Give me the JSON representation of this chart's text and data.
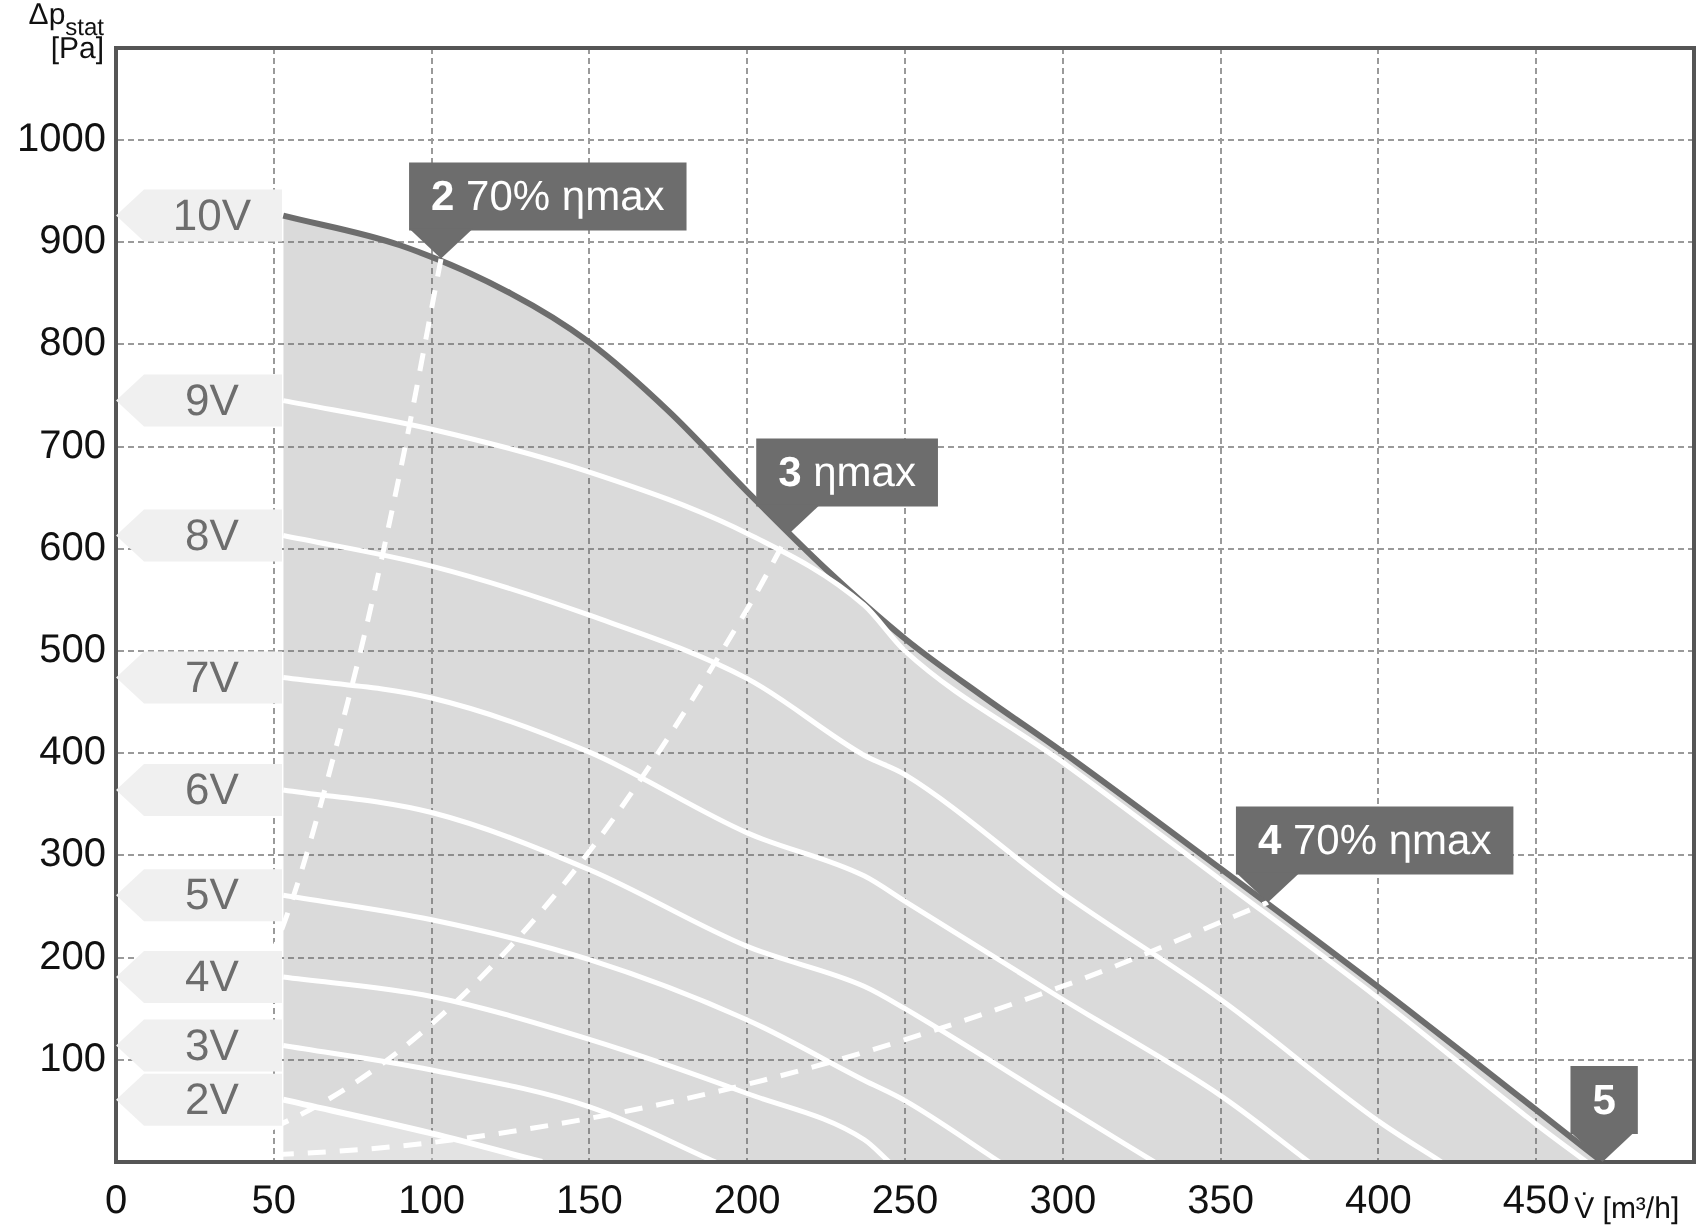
{
  "chart_data": {
    "type": "line",
    "xlabel": "V̇ [m³/h]",
    "ylabel": "Δp$_{stat}$ [Pa]",
    "xlim": [
      0,
      500
    ],
    "ylim": [
      0,
      1090
    ],
    "xticks": [
      0,
      50,
      100,
      150,
      200,
      250,
      300,
      350,
      400,
      450
    ],
    "yticks": [
      100,
      200,
      300,
      400,
      500,
      600,
      700,
      800,
      900,
      1000
    ],
    "grid": true,
    "legend": "left",
    "series": [
      {
        "name": "10V",
        "type": "area",
        "color": "#6d6d6d",
        "x": [
          53,
          90,
          125,
          150,
          175,
          200,
          225,
          250,
          275,
          300,
          350,
          400,
          450,
          471
        ],
        "values": [
          926,
          897,
          850,
          802,
          735,
          656,
          580,
          512,
          455,
          401,
          287,
          171,
          51,
          0
        ]
      },
      {
        "name": "9V",
        "color": "#ffffff",
        "x": [
          53,
          100,
          150,
          200,
          237,
          250,
          300,
          350,
          400,
          450,
          466
        ],
        "values": [
          745,
          717,
          675,
          615,
          545,
          500,
          391,
          276,
          160,
          37,
          0
        ]
      },
      {
        "name": "8V",
        "color": "#ffffff",
        "x": [
          53,
          100,
          150,
          200,
          237,
          250,
          300,
          350,
          400,
          420
        ],
        "values": [
          613,
          583,
          535,
          473,
          398,
          379,
          263,
          159,
          40,
          0
        ]
      },
      {
        "name": "7V",
        "color": "#ffffff",
        "x": [
          53,
          100,
          150,
          200,
          237,
          250,
          300,
          350,
          378
        ],
        "values": [
          474,
          454,
          401,
          322,
          280,
          255,
          159,
          65,
          0
        ]
      },
      {
        "name": "6V",
        "color": "#ffffff",
        "x": [
          53,
          100,
          150,
          200,
          237,
          250,
          300,
          329
        ],
        "values": [
          364,
          342,
          286,
          211,
          172,
          150,
          55,
          0
        ]
      },
      {
        "name": "5V",
        "color": "#ffffff",
        "x": [
          53,
          100,
          150,
          200,
          237,
          250,
          280
        ],
        "values": [
          261,
          237,
          198,
          139,
          80,
          60,
          0
        ]
      },
      {
        "name": "4V",
        "color": "#ffffff",
        "x": [
          53,
          100,
          150,
          200,
          237,
          245
        ],
        "values": [
          181,
          162,
          120,
          67,
          22,
          0
        ]
      },
      {
        "name": "3V",
        "color": "#ffffff",
        "x": [
          53,
          100,
          150,
          190
        ],
        "values": [
          114,
          90,
          54,
          0
        ]
      },
      {
        "name": "2V",
        "type": "area",
        "color": "#ffffff",
        "x": [
          53,
          100,
          135
        ],
        "values": [
          61,
          28,
          0
        ]
      },
      {
        "color": "#ffffff",
        "line_style": "dashed",
        "x": [
          0,
          50,
          75,
          90,
          103
        ],
        "values": [
          0,
          208,
          469,
          675,
          884
        ]
      },
      {
        "color": "#ffffff",
        "line_style": "dashed",
        "x": [
          0,
          50,
          100,
          150,
          200,
          213
        ],
        "values": [
          0,
          34,
          135,
          304,
          541,
          614
        ]
      },
      {
        "color": "#ffffff",
        "line_style": "dashed",
        "x": [
          0,
          100,
          200,
          300,
          365
        ],
        "values": [
          0,
          19,
          76,
          172,
          254
        ]
      }
    ],
    "annotations": [
      {
        "text": "2 70% ηmax",
        "x": 103,
        "y": 884
      },
      {
        "text": "3 ηmax",
        "x": 213,
        "y": 614
      },
      {
        "text": "4 70% ηmax",
        "x": 365,
        "y": 254
      },
      {
        "text": "5",
        "x": 471,
        "y": 0
      }
    ]
  }
}
